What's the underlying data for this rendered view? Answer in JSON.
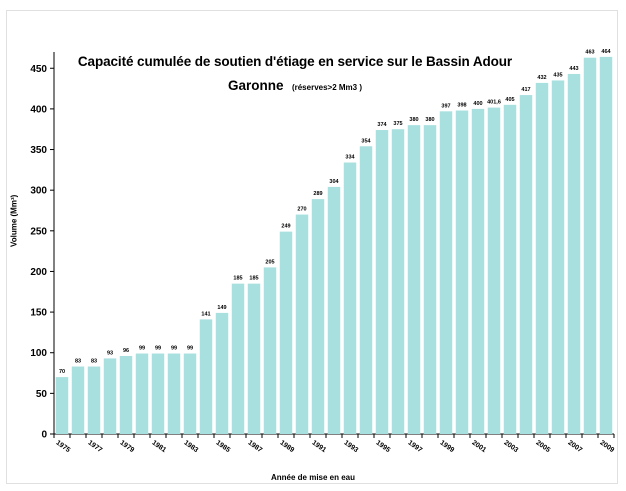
{
  "chart_data": {
    "type": "bar",
    "title": "Capacité cumulée de soutien d'étiage en service sur le Bassin Adour Garonne",
    "title_line1": "Capacité cumulée de soutien d'étiage en service sur le Bassin Adour",
    "title_line2": "Garonne",
    "subtitle": "(réserves>2 Mm3 )",
    "xlabel": "Année de mise en eau",
    "ylabel": "Volume (Mm³)",
    "ylim": [
      0,
      470
    ],
    "yticks": [
      0,
      50,
      100,
      150,
      200,
      250,
      300,
      350,
      400,
      450
    ],
    "grid": false,
    "legend": "none",
    "bar_color": "#a8e0e0",
    "categories": [
      "1975",
      "1976",
      "1977",
      "1978",
      "1979",
      "1980",
      "1981",
      "1982",
      "1983",
      "1984",
      "1985",
      "1986",
      "1987",
      "1988",
      "1989",
      "1990",
      "1991",
      "1992",
      "1993",
      "1994",
      "1995",
      "1996",
      "1997",
      "1998",
      "1999",
      "2000",
      "2001",
      "2002",
      "2003",
      "2004",
      "2005",
      "2006",
      "2007",
      "2008",
      "2009"
    ],
    "xtick_labels": [
      "1975",
      "",
      "1977",
      "",
      "1979",
      "",
      "1981",
      "",
      "1983",
      "",
      "1985",
      "",
      "1987",
      "",
      "1989",
      "",
      "1991",
      "",
      "1993",
      "",
      "1995",
      "",
      "1997",
      "",
      "1999",
      "",
      "2001",
      "",
      "2003",
      "",
      "2005",
      "",
      "2007",
      "",
      "2009"
    ],
    "values": [
      70,
      83,
      83,
      93,
      96,
      99,
      99,
      99,
      99,
      141,
      149,
      185,
      185,
      205,
      249,
      270,
      289,
      304,
      334,
      354,
      374,
      375,
      380,
      380,
      397,
      398,
      400,
      401.6,
      405,
      417,
      432,
      435,
      443,
      463,
      464
    ],
    "value_labels": [
      "70",
      "83",
      "83",
      "93",
      "96",
      "99",
      "99",
      "99",
      "99",
      "141",
      "149",
      "185",
      "185",
      "205",
      "249",
      "270",
      "289",
      "304",
      "334",
      "354",
      "374",
      "375",
      "380",
      "380",
      "397",
      "398",
      "400",
      "401,6",
      "405",
      "417",
      "432",
      "435",
      "443",
      "463",
      "464"
    ]
  }
}
